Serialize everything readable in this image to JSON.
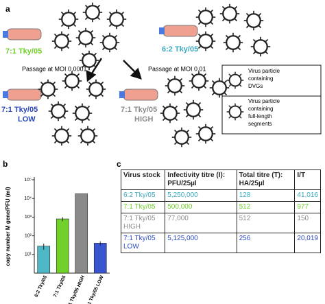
{
  "diagram": {
    "panel_label": "a",
    "top_left_label": "7:1 Tky/05",
    "top_right_label": "6:2 Tky/05",
    "arrow_left_label": "Passage at MOI 0.0001",
    "arrow_right_label": "Passage at MOI 0.01",
    "low_label": [
      "7:1 Tky/05",
      "LOW"
    ],
    "high_label": [
      "7:1 Tky/05",
      "HIGH"
    ],
    "legend": [
      {
        "lines": [
          "Virus particle",
          "containing",
          "DVGs"
        ]
      },
      {
        "lines": [
          "Virus particle",
          "containing",
          "full-length",
          "segments"
        ]
      }
    ]
  },
  "chart_data": {
    "type": "bar",
    "panel_label": "b",
    "ylabel": "copy number M gene/PFU (ml)",
    "categories": [
      "6:2 Tky/05",
      "7:1 Tky/05",
      "7:1 Tky/05 HIGH",
      "7:1 Tky/05 LOW"
    ],
    "values": [
      28,
      800,
      18000,
      40
    ],
    "errors": [
      10,
      200,
      0,
      10
    ],
    "colors": [
      "#4fb8c6",
      "#6fd12a",
      "#8a8a8a",
      "#3a55d0"
    ],
    "log_scale": true,
    "ylim": [
      1,
      100000
    ],
    "yticks": [
      {
        "value": 10,
        "label": "10¹"
      },
      {
        "value": 100,
        "label": "10²"
      },
      {
        "value": 1000,
        "label": "10³"
      },
      {
        "value": 10000,
        "label": "10⁴"
      },
      {
        "value": 100000,
        "label": "10⁵"
      }
    ]
  },
  "table": {
    "panel_label": "c",
    "header": [
      "Virus stock",
      "Infectivity titre (I): PFU/25µl",
      "Total titre (T): HA/25µl",
      "I/T"
    ],
    "rows": [
      [
        "6:2 Tky/05",
        "5,250,000",
        "128",
        "41,016"
      ],
      [
        "7:1 Tky/05",
        "500,000",
        "512",
        "977"
      ],
      [
        "7:1 Tky/05 HIGH",
        "77,000",
        "512",
        "150"
      ],
      [
        "7:1 Tky/05 LOW",
        "5,125,000",
        "256",
        "20,019"
      ]
    ],
    "row_colors": [
      "#3aa9c0",
      "#6fd12a",
      "#8a8a8a",
      "#2a48c0"
    ]
  }
}
